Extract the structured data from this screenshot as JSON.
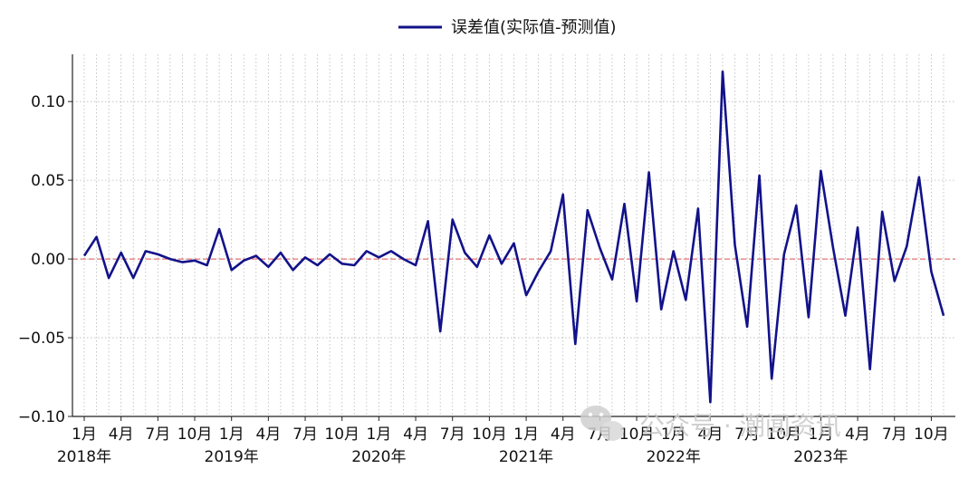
{
  "chart_data": {
    "type": "line",
    "title": "",
    "xlabel": "",
    "ylabel": "",
    "legend": {
      "placement": "top-center"
    },
    "grid": true,
    "ylim": [
      -0.1,
      0.13
    ],
    "yticks": [
      -0.1,
      -0.05,
      0.0,
      0.05,
      0.1
    ],
    "ytick_labels": [
      "−0.10",
      "−0.05",
      "0.00",
      "0.05",
      "0.10"
    ],
    "zero_reference_line": {
      "y": 0.0,
      "color": "#e05050",
      "style": "dashed"
    },
    "xtick_labels": [
      {
        "month": "1月",
        "year": "2018年",
        "x": "2018-01"
      },
      {
        "month": "4月",
        "year": "",
        "x": "2018-04"
      },
      {
        "month": "7月",
        "year": "",
        "x": "2018-07"
      },
      {
        "month": "10月",
        "year": "",
        "x": "2018-10"
      },
      {
        "month": "1月",
        "year": "2019年",
        "x": "2019-01"
      },
      {
        "month": "4月",
        "year": "",
        "x": "2019-04"
      },
      {
        "month": "7月",
        "year": "",
        "x": "2019-07"
      },
      {
        "month": "10月",
        "year": "",
        "x": "2019-10"
      },
      {
        "month": "1月",
        "year": "2020年",
        "x": "2020-01"
      },
      {
        "month": "4月",
        "year": "",
        "x": "2020-04"
      },
      {
        "month": "7月",
        "year": "",
        "x": "2020-07"
      },
      {
        "month": "10月",
        "year": "",
        "x": "2020-10"
      },
      {
        "month": "1月",
        "year": "2021年",
        "x": "2021-01"
      },
      {
        "month": "4月",
        "year": "",
        "x": "2021-04"
      },
      {
        "month": "7月",
        "year": "",
        "x": "2021-07"
      },
      {
        "month": "10月",
        "year": "",
        "x": "2021-10"
      },
      {
        "month": "1月",
        "year": "2022年",
        "x": "2022-01"
      },
      {
        "month": "4月",
        "year": "",
        "x": "2022-04"
      },
      {
        "month": "7月",
        "year": "",
        "x": "2022-07"
      },
      {
        "month": "10月",
        "year": "",
        "x": "2022-10"
      },
      {
        "month": "1月",
        "year": "2023年",
        "x": "2023-01"
      },
      {
        "month": "4月",
        "year": "",
        "x": "2023-04"
      },
      {
        "month": "7月",
        "year": "",
        "x": "2023-07"
      },
      {
        "month": "10月",
        "year": "",
        "x": "2023-10"
      }
    ],
    "series": [
      {
        "name": "误差值(实际值-预测值)",
        "color": "#12128a",
        "x": [
          "2018-01",
          "2018-02",
          "2018-03",
          "2018-04",
          "2018-05",
          "2018-06",
          "2018-07",
          "2018-08",
          "2018-09",
          "2018-10",
          "2018-11",
          "2018-12",
          "2019-01",
          "2019-02",
          "2019-03",
          "2019-04",
          "2019-05",
          "2019-06",
          "2019-07",
          "2019-08",
          "2019-09",
          "2019-10",
          "2019-11",
          "2019-12",
          "2020-01",
          "2020-02",
          "2020-03",
          "2020-04",
          "2020-05",
          "2020-06",
          "2020-07",
          "2020-08",
          "2020-09",
          "2020-10",
          "2020-11",
          "2020-12",
          "2021-01",
          "2021-02",
          "2021-03",
          "2021-04",
          "2021-05",
          "2021-06",
          "2021-07",
          "2021-08",
          "2021-09",
          "2021-10",
          "2021-11",
          "2021-12",
          "2022-01",
          "2022-02",
          "2022-03",
          "2022-04",
          "2022-05",
          "2022-06",
          "2022-07",
          "2022-08",
          "2022-09",
          "2022-10",
          "2022-11",
          "2022-12",
          "2023-01",
          "2023-02",
          "2023-03",
          "2023-04",
          "2023-05",
          "2023-06",
          "2023-07",
          "2023-08",
          "2023-09",
          "2023-10",
          "2023-11"
        ],
        "values": [
          0.002,
          0.014,
          -0.012,
          0.004,
          -0.012,
          0.005,
          0.003,
          0.0,
          -0.002,
          -0.001,
          -0.004,
          0.019,
          -0.007,
          -0.001,
          0.002,
          -0.005,
          0.004,
          -0.007,
          0.001,
          -0.004,
          0.003,
          -0.003,
          -0.004,
          0.005,
          0.001,
          0.005,
          0.0,
          -0.004,
          0.024,
          -0.046,
          0.025,
          0.004,
          -0.005,
          0.015,
          -0.003,
          0.01,
          -0.023,
          -0.008,
          0.005,
          0.041,
          -0.054,
          0.031,
          0.007,
          -0.013,
          0.035,
          -0.027,
          0.055,
          -0.032,
          0.005,
          -0.026,
          0.032,
          -0.091,
          0.119,
          0.009,
          -0.043,
          0.053,
          -0.076,
          0.003,
          0.034,
          -0.037,
          0.056,
          0.007,
          -0.036,
          0.02,
          -0.07,
          0.03,
          -0.014,
          0.008,
          0.052,
          -0.008,
          -0.036
        ]
      }
    ]
  },
  "watermark": {
    "text": "公众号 · 潮闻资讯",
    "icon": "wechat-icon"
  }
}
